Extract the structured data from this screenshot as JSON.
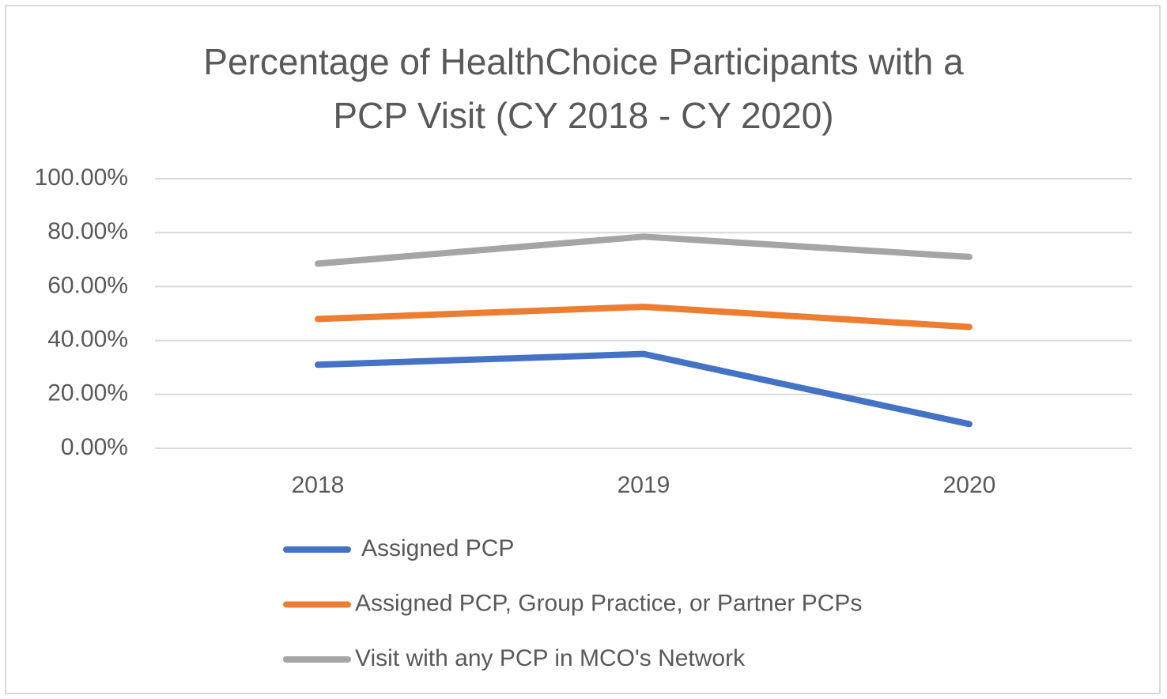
{
  "chart_data": {
    "type": "line",
    "title": "Percentage of HealthChoice Participants with a\nPCP Visit (CY 2018 - CY 2020)",
    "categories": [
      "2018",
      "2019",
      "2020"
    ],
    "series": [
      {
        "name": "Assigned PCP",
        "color": "#4472c4",
        "values": [
          31,
          35,
          9
        ]
      },
      {
        "name": "Assigned PCP, Group Practice, or Partner PCPs",
        "color": "#ed7d31",
        "values": [
          48,
          52.5,
          45
        ]
      },
      {
        "name": "Visit with any PCP in MCO's Network",
        "color": "#a5a5a5",
        "values": [
          68.5,
          78.5,
          71
        ]
      }
    ],
    "ylim": [
      0,
      100
    ],
    "yticks": [
      {
        "value": 0,
        "label": "0.00%"
      },
      {
        "value": 20,
        "label": "20.00%"
      },
      {
        "value": 40,
        "label": "40.00%"
      },
      {
        "value": 60,
        "label": "60.00%"
      },
      {
        "value": 80,
        "label": "80.00%"
      },
      {
        "value": 100,
        "label": "100.00%"
      }
    ],
    "grid": true,
    "legend": "bottom"
  }
}
